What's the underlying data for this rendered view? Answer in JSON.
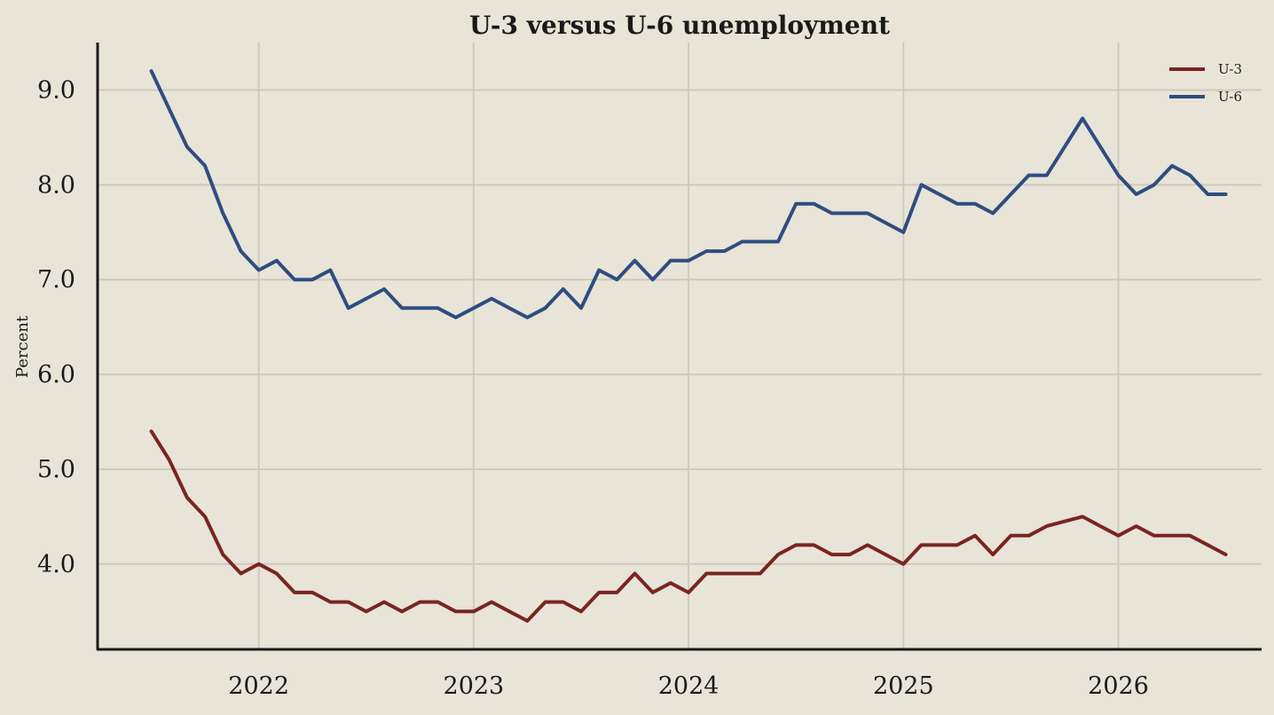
{
  "chart_data": {
    "type": "line",
    "title": "U-3 versus U-6 unemployment",
    "xlabel": "",
    "ylabel": "Percent",
    "x_ticks": [
      "2022",
      "2023",
      "2024",
      "2025",
      "2026"
    ],
    "y_ticks": [
      "4.0",
      "5.0",
      "6.0",
      "7.0",
      "8.0",
      "9.0"
    ],
    "ylim": [
      3.1,
      9.5
    ],
    "xlim": [
      "2021-04",
      "2026-09"
    ],
    "grid": true,
    "legend_position": "top-right",
    "x": [
      "2021-07",
      "2021-08",
      "2021-09",
      "2021-10",
      "2021-11",
      "2021-12",
      "2022-01",
      "2022-02",
      "2022-03",
      "2022-04",
      "2022-05",
      "2022-06",
      "2022-07",
      "2022-08",
      "2022-09",
      "2022-10",
      "2022-11",
      "2022-12",
      "2023-01",
      "2023-02",
      "2023-03",
      "2023-04",
      "2023-05",
      "2023-06",
      "2023-07",
      "2023-08",
      "2023-09",
      "2023-10",
      "2023-11",
      "2023-12",
      "2024-01",
      "2024-02",
      "2024-03",
      "2024-04",
      "2024-05",
      "2024-06",
      "2024-07",
      "2024-08",
      "2024-09",
      "2024-10",
      "2024-11",
      "2024-12",
      "2025-01",
      "2025-02",
      "2025-03",
      "2025-04",
      "2025-05",
      "2025-06",
      "2025-07",
      "2025-08",
      "2025-09",
      "2025-10",
      "2025-11",
      "2025-12",
      "2026-01",
      "2026-02",
      "2026-03",
      "2026-04",
      "2026-05",
      "2026-06",
      "2026-07"
    ],
    "series": [
      {
        "name": "U-3",
        "color": "#7a2420",
        "values": [
          5.4,
          5.1,
          4.7,
          4.5,
          4.1,
          3.9,
          4.0,
          3.9,
          3.7,
          3.7,
          3.6,
          3.6,
          3.5,
          3.6,
          3.5,
          3.6,
          3.6,
          3.5,
          3.5,
          3.6,
          3.5,
          3.4,
          3.6,
          3.6,
          3.5,
          3.7,
          3.7,
          3.9,
          3.7,
          3.8,
          3.7,
          3.9,
          3.9,
          3.9,
          3.9,
          4.1,
          4.2,
          4.2,
          4.1,
          4.1,
          4.2,
          4.1,
          4.0,
          4.2,
          4.2,
          4.2,
          4.3,
          4.1,
          4.3,
          4.3,
          4.4,
          4.45,
          4.5,
          4.4,
          4.3,
          4.4,
          4.3,
          4.3,
          4.3,
          4.2,
          4.1
        ]
      },
      {
        "name": "U-6",
        "color": "#2e4d80",
        "values": [
          9.2,
          8.8,
          8.4,
          8.2,
          7.7,
          7.3,
          7.1,
          7.2,
          7.0,
          7.0,
          7.1,
          6.7,
          6.8,
          6.9,
          6.7,
          6.7,
          6.7,
          6.6,
          6.7,
          6.8,
          6.7,
          6.6,
          6.7,
          6.9,
          6.7,
          7.1,
          7.0,
          7.2,
          7.0,
          7.2,
          7.2,
          7.3,
          7.3,
          7.4,
          7.4,
          7.4,
          7.8,
          7.8,
          7.7,
          7.7,
          7.7,
          7.6,
          7.5,
          8.0,
          7.9,
          7.8,
          7.8,
          7.7,
          7.9,
          8.1,
          8.1,
          8.4,
          8.7,
          8.4,
          8.1,
          7.9,
          8.0,
          8.2,
          8.1,
          7.9,
          7.9
        ]
      }
    ]
  }
}
